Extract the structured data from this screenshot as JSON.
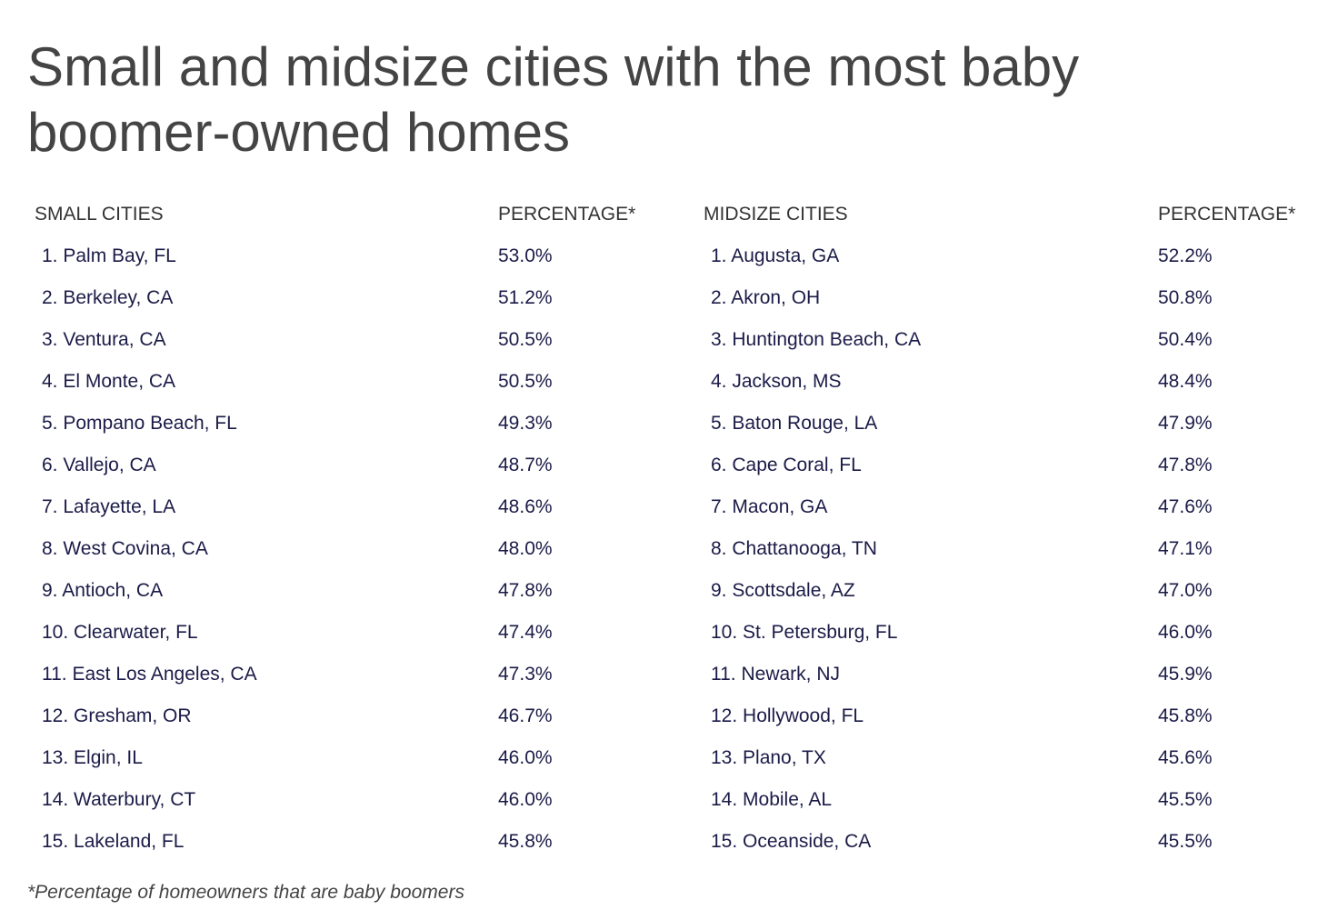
{
  "title": "Small and midsize cities with the most baby boomer-owned homes",
  "colors": {
    "title": "#444444",
    "header": "#333333",
    "row_text": "#1b1b48"
  },
  "small": {
    "header_city": "SMALL CITIES",
    "header_pct": "PERCENTAGE*",
    "rows": [
      {
        "city": "1. Palm Bay, FL",
        "pct": "53.0%"
      },
      {
        "city": "2. Berkeley, CA",
        "pct": "51.2%"
      },
      {
        "city": "3. Ventura, CA",
        "pct": "50.5%"
      },
      {
        "city": "4. El Monte, CA",
        "pct": "50.5%"
      },
      {
        "city": "5. Pompano Beach, FL",
        "pct": "49.3%"
      },
      {
        "city": "6. Vallejo, CA",
        "pct": "48.7%"
      },
      {
        "city": "7. Lafayette, LA",
        "pct": "48.6%"
      },
      {
        "city": "8. West Covina, CA",
        "pct": "48.0%"
      },
      {
        "city": "9. Antioch, CA",
        "pct": "47.8%"
      },
      {
        "city": "10. Clearwater, FL",
        "pct": "47.4%"
      },
      {
        "city": "11. East Los Angeles, CA",
        "pct": "47.3%"
      },
      {
        "city": "12. Gresham, OR",
        "pct": "46.7%"
      },
      {
        "city": "13. Elgin, IL",
        "pct": "46.0%"
      },
      {
        "city": "14. Waterbury, CT",
        "pct": "46.0%"
      },
      {
        "city": "15. Lakeland, FL",
        "pct": "45.8%"
      }
    ]
  },
  "midsize": {
    "header_city": "MIDSIZE CITIES",
    "header_pct": "PERCENTAGE*",
    "rows": [
      {
        "city": "1. Augusta, GA",
        "pct": "52.2%"
      },
      {
        "city": "2. Akron, OH",
        "pct": "50.8%"
      },
      {
        "city": "3. Huntington Beach, CA",
        "pct": "50.4%"
      },
      {
        "city": "4. Jackson, MS",
        "pct": "48.4%"
      },
      {
        "city": "5. Baton Rouge, LA",
        "pct": "47.9%"
      },
      {
        "city": "6. Cape Coral, FL",
        "pct": "47.8%"
      },
      {
        "city": "7. Macon, GA",
        "pct": "47.6%"
      },
      {
        "city": "8. Chattanooga, TN",
        "pct": "47.1%"
      },
      {
        "city": "9. Scottsdale, AZ",
        "pct": "47.0%"
      },
      {
        "city": "10. St. Petersburg, FL",
        "pct": "46.0%"
      },
      {
        "city": "11. Newark, NJ",
        "pct": "45.9%"
      },
      {
        "city": "12. Hollywood, FL",
        "pct": "45.8%"
      },
      {
        "city": "13. Plano, TX",
        "pct": "45.6%"
      },
      {
        "city": "14. Mobile, AL",
        "pct": "45.5%"
      },
      {
        "city": "15. Oceanside, CA",
        "pct": "45.5%"
      }
    ]
  },
  "footnote": "*Percentage of homeowners that are baby boomers"
}
